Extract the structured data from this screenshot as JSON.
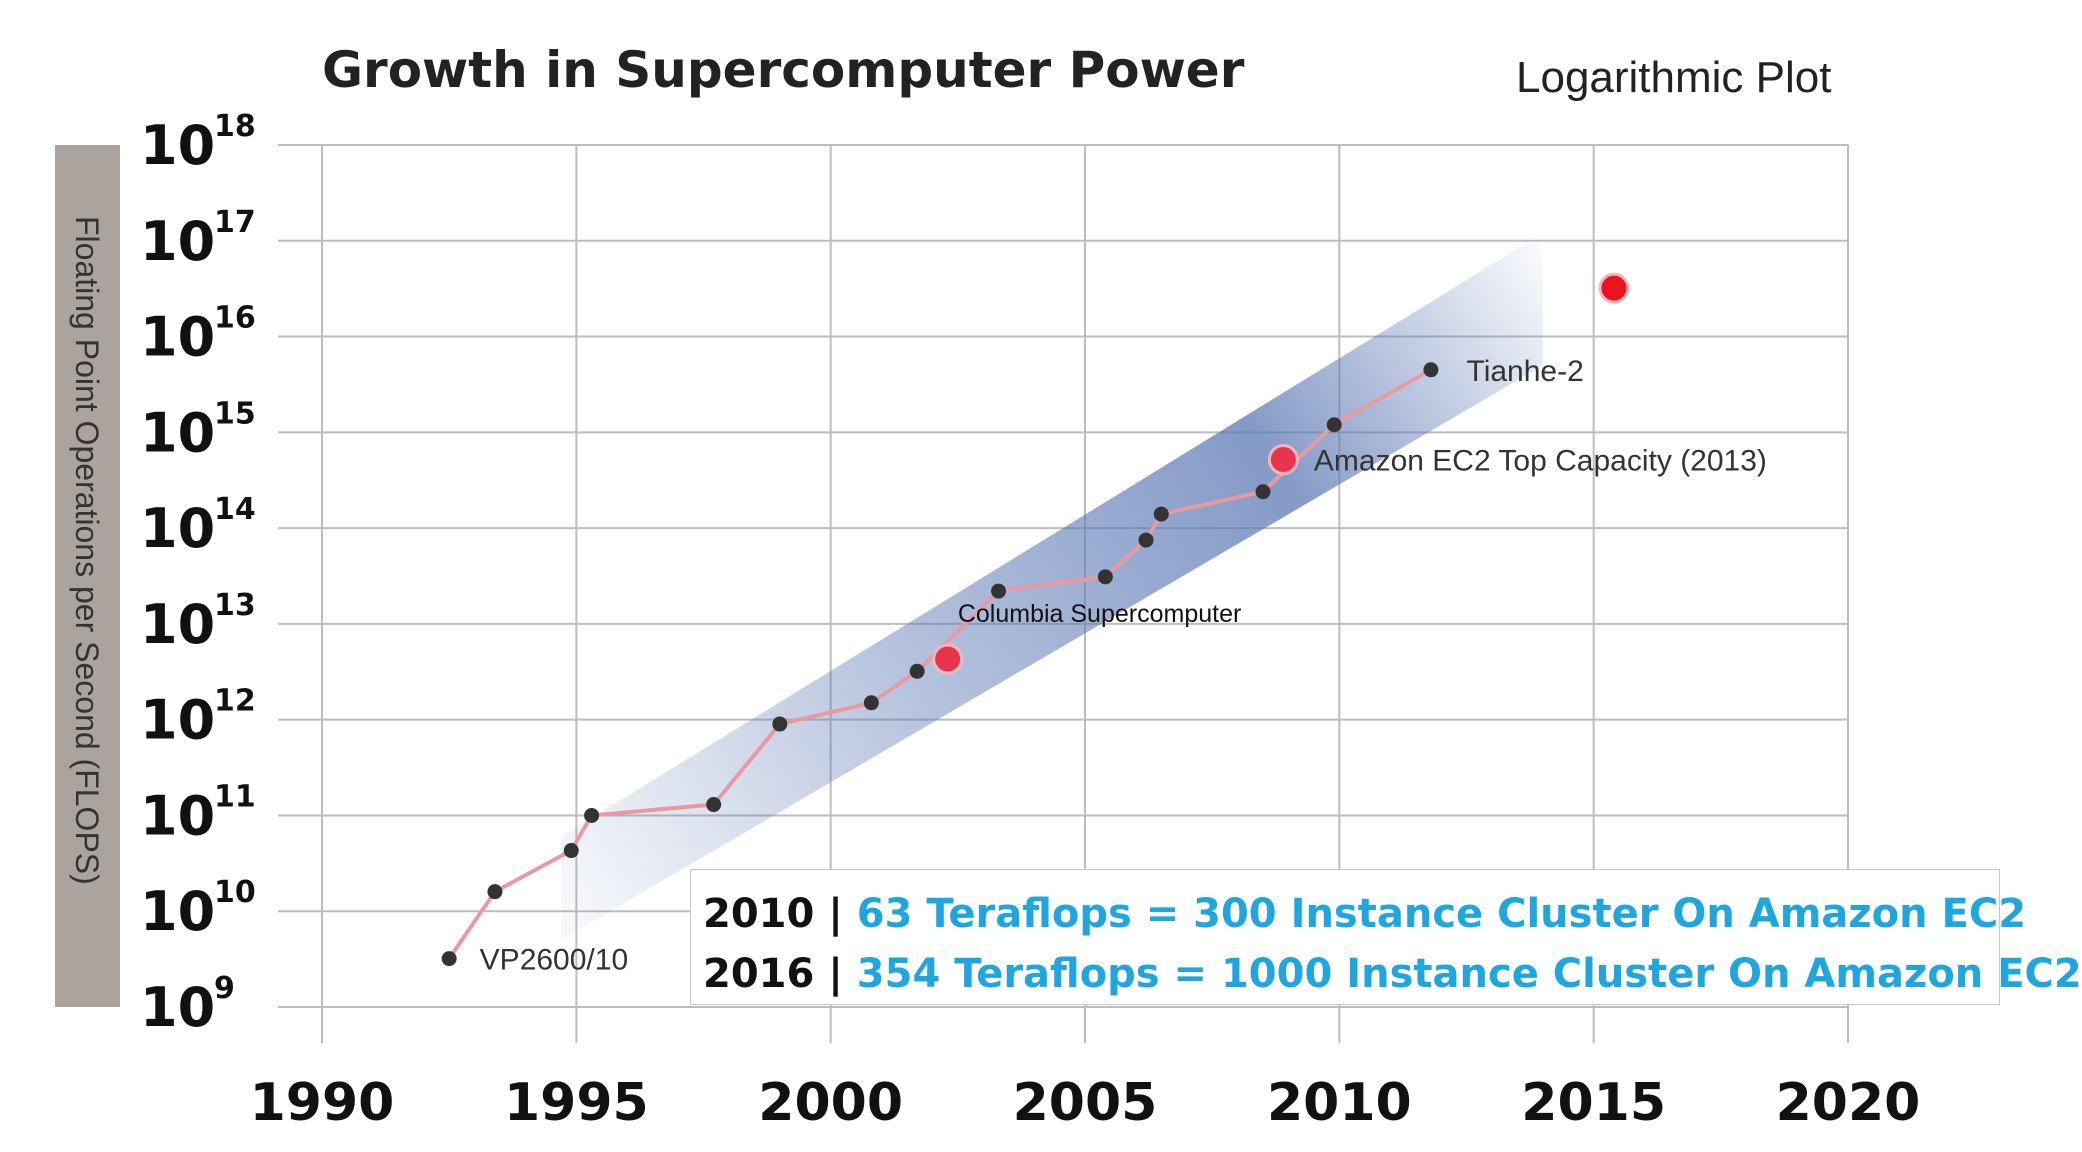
{
  "chart_data": {
    "type": "scatter",
    "title": "Growth in Supercomputer Power",
    "subtitle": "Logarithmic Plot",
    "ylabel": "Floating Point Operations per Second (FLOPS)",
    "xlabel": "",
    "log_y": true,
    "xlim": [
      1990,
      2020
    ],
    "ylim": [
      1000000000.0,
      1e+18
    ],
    "grid": true,
    "x_ticks": [
      "1990",
      "1995",
      "2000",
      "2005",
      "2010",
      "2015",
      "2020"
    ],
    "y_ticks": [
      {
        "base": "10",
        "exp": "18",
        "value": 1e+18
      },
      {
        "base": "10",
        "exp": "17",
        "value": 1e+17
      },
      {
        "base": "10",
        "exp": "16",
        "value": 1e+16
      },
      {
        "base": "10",
        "exp": "15",
        "value": 1000000000000000.0
      },
      {
        "base": "10",
        "exp": "14",
        "value": 100000000000000.0
      },
      {
        "base": "10",
        "exp": "13",
        "value": 10000000000000.0
      },
      {
        "base": "10",
        "exp": "12",
        "value": 1000000000000.0
      },
      {
        "base": "10",
        "exp": "11",
        "value": 100000000000.0
      },
      {
        "base": "10",
        "exp": "10",
        "value": 10000000000.0
      },
      {
        "base": "10",
        "exp": "9",
        "value": 1000000000.0
      }
    ],
    "series": [
      {
        "color": "#e89aa0",
        "marker_color": "#333333",
        "points": [
          {
            "x": 1992.5,
            "y": 3200000000.0
          },
          {
            "x": 1993.4,
            "y": 16000000000.0
          },
          {
            "x": 1994.9,
            "y": 43000000000.0
          },
          {
            "x": 1995.3,
            "y": 100000000000.0
          },
          {
            "x": 1997.7,
            "y": 130000000000.0
          },
          {
            "x": 1999.0,
            "y": 900000000000.0
          },
          {
            "x": 2000.8,
            "y": 1500000000000.0
          },
          {
            "x": 2001.7,
            "y": 3200000000000.0
          },
          {
            "x": 2003.3,
            "y": 22000000000000.0
          },
          {
            "x": 2005.4,
            "y": 31000000000000.0
          },
          {
            "x": 2006.2,
            "y": 75000000000000.0
          },
          {
            "x": 2006.5,
            "y": 140000000000000.0
          },
          {
            "x": 2008.5,
            "y": 240000000000000.0
          },
          {
            "x": 2009.9,
            "y": 1200000000000000.0
          },
          {
            "x": 2011.8,
            "y": 4500000000000000.0
          }
        ]
      }
    ],
    "highlights": [
      {
        "x": 2002.3,
        "y": 4300000000000.0,
        "color": "#e8344d"
      },
      {
        "x": 2008.9,
        "y": 520000000000000.0,
        "color": "#e8344d"
      },
      {
        "x": 2015.4,
        "y": 3.2e+16,
        "color": "#e8141e"
      }
    ],
    "annotations": [
      {
        "text": "VP2600/10",
        "x": 1993.1,
        "y": 3200000000.0
      },
      {
        "text": "Tianhe-2",
        "x": 2012.5,
        "y": 4500000000000000.0
      },
      {
        "text": "Amazon EC2 Top Capacity (2013)",
        "x": 2009.5,
        "y": 520000000000000.0
      },
      {
        "text": "Columbia  Supercomputer",
        "x": 2002.5,
        "y": 13000000000000.0
      }
    ],
    "band": {
      "colors": [
        "#5b78b4",
        "#ffffff"
      ]
    }
  },
  "info_box": {
    "line1": {
      "year": "2010 | ",
      "text": "63 Teraflops =     300 Instance Cluster On Amazon EC2"
    },
    "line2": {
      "year": "2016 | ",
      "text": "354 Teraflops = 1000 Instance Cluster On Amazon EC2"
    }
  },
  "colors": {
    "ylabel_bar": "#aba39e",
    "grid": "#bdbdbd",
    "highlight_text": "#1fa6de"
  }
}
